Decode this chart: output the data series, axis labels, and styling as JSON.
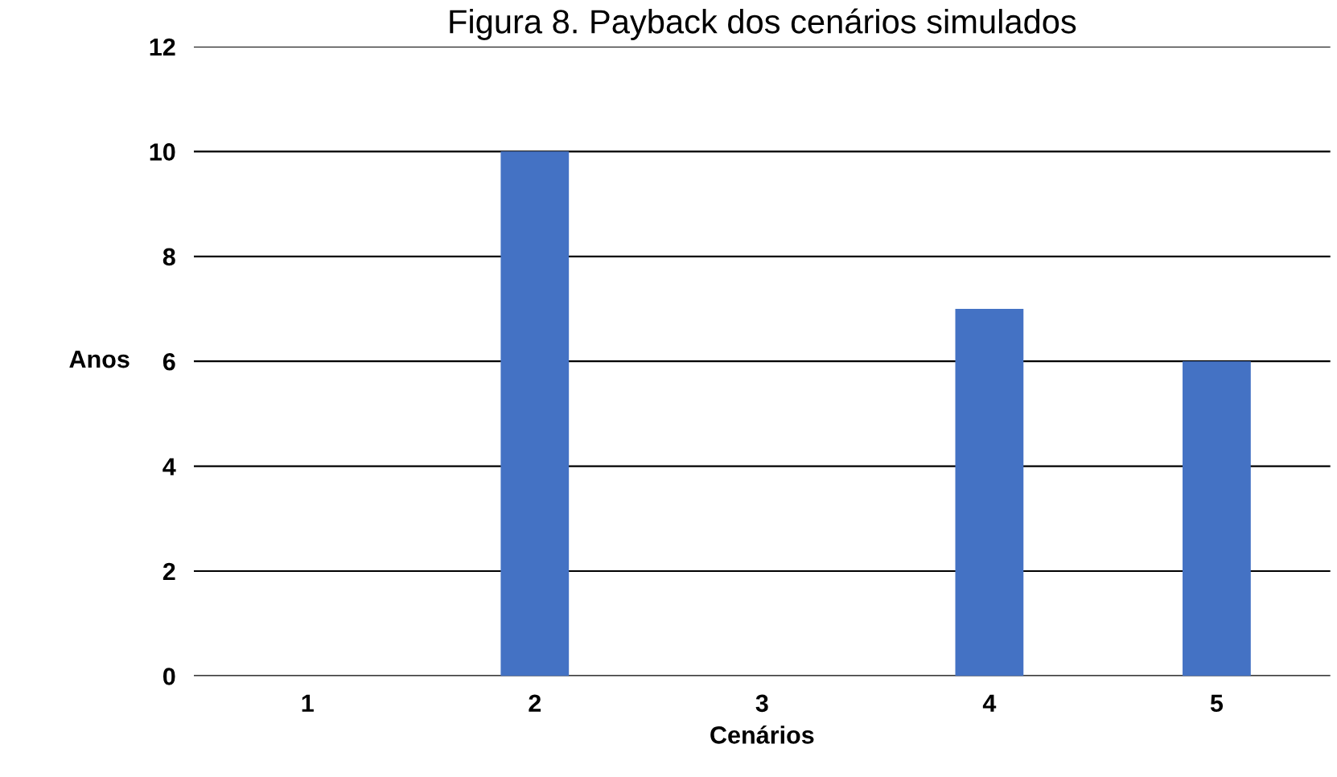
{
  "chart_data": {
    "type": "bar",
    "title": "Figura 8. Payback dos cenários simulados",
    "xlabel": "Cenários",
    "ylabel": "Anos",
    "categories": [
      "1",
      "2",
      "3",
      "4",
      "5"
    ],
    "values": [
      0,
      10,
      0,
      7,
      6
    ],
    "color": "#4472c4",
    "ylim": [
      0,
      12
    ],
    "yticks": [
      0,
      2,
      4,
      6,
      8,
      10,
      12
    ],
    "grid": "y",
    "legend": false
  }
}
